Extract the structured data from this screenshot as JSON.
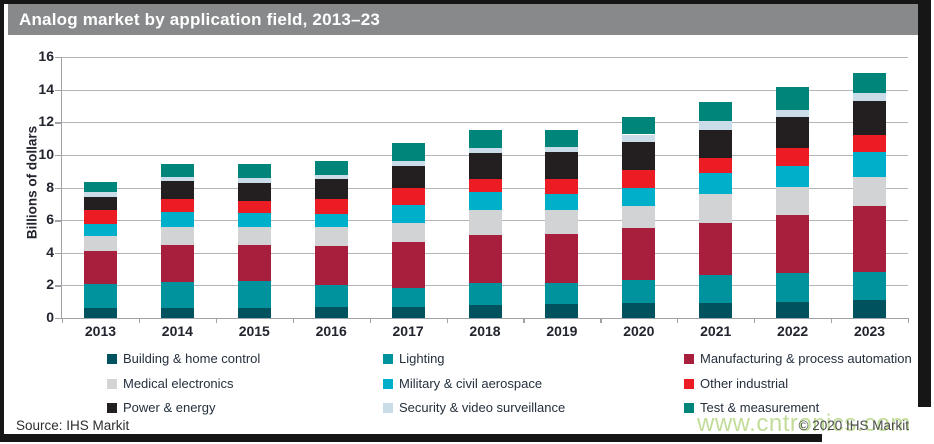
{
  "title": "Analog market by application field, 2013–23",
  "source": "Source: IHS Markit",
  "copyright": "© 2020 IHS Markit",
  "watermark": "www.cntronics.com",
  "colors": {
    "title_bar": "#87898b",
    "frame": "#161616",
    "grid": "#b3b5b8",
    "axis_text": "#22242e",
    "legend_text": "#25303e",
    "watermark_green": "#a9ce6e"
  },
  "chart_data": {
    "type": "bar",
    "stacked": true,
    "title": "Analog market by application field, 2013–23",
    "xlabel": "",
    "ylabel": "Billions of dollars",
    "ylim": [
      0,
      16
    ],
    "ytick_step": 2,
    "grid": true,
    "legend_position": "bottom",
    "categories": [
      "2013",
      "2014",
      "2015",
      "2016",
      "2017",
      "2018",
      "2019",
      "2020",
      "2021",
      "2022",
      "2023"
    ],
    "series": [
      {
        "name": "Building & home control",
        "color": "#00525f",
        "values": [
          0.6,
          0.6,
          0.6,
          0.65,
          0.7,
          0.8,
          0.85,
          0.9,
          0.95,
          1.0,
          1.1
        ]
      },
      {
        "name": "Lighting",
        "color": "#00939d",
        "values": [
          1.5,
          1.6,
          1.65,
          1.4,
          1.15,
          1.35,
          1.3,
          1.45,
          1.7,
          1.75,
          1.75
        ]
      },
      {
        "name": "Manufacturing & process automation",
        "color": "#a81e3d",
        "values": [
          2.0,
          2.3,
          2.25,
          2.35,
          2.8,
          2.95,
          3.0,
          3.15,
          3.2,
          3.55,
          4.0
        ]
      },
      {
        "name": "Medical electronics",
        "color": "#d1d3d4",
        "values": [
          0.9,
          1.1,
          1.05,
          1.2,
          1.15,
          1.55,
          1.45,
          1.35,
          1.75,
          1.75,
          1.8
        ]
      },
      {
        "name": "Military & civil aerospace",
        "color": "#00afc9",
        "values": [
          0.75,
          0.9,
          0.9,
          0.8,
          1.1,
          1.1,
          1.0,
          1.15,
          1.3,
          1.25,
          1.5
        ]
      },
      {
        "name": "Other industrial",
        "color": "#ec1c24",
        "values": [
          0.85,
          0.8,
          0.75,
          0.9,
          1.05,
          0.75,
          0.95,
          1.05,
          0.9,
          1.1,
          1.05
        ]
      },
      {
        "name": "Power & energy",
        "color": "#231f20",
        "values": [
          0.8,
          1.1,
          1.1,
          1.25,
          1.35,
          1.6,
          1.65,
          1.75,
          1.75,
          1.9,
          2.1
        ]
      },
      {
        "name": "Security & video surveillance",
        "color": "#c9dce7",
        "values": [
          0.35,
          0.25,
          0.3,
          0.2,
          0.35,
          0.3,
          0.3,
          0.45,
          0.55,
          0.45,
          0.5
        ]
      },
      {
        "name": "Test & measurement",
        "color": "#00857b",
        "values": [
          0.6,
          0.8,
          0.85,
          0.9,
          1.05,
          1.1,
          1.0,
          1.1,
          1.15,
          1.4,
          1.25
        ]
      }
    ],
    "totals": [
      8.4,
      9.5,
      9.5,
      9.7,
      10.7,
      11.5,
      11.5,
      12.4,
      13.3,
      14.2,
      15.1
    ]
  }
}
